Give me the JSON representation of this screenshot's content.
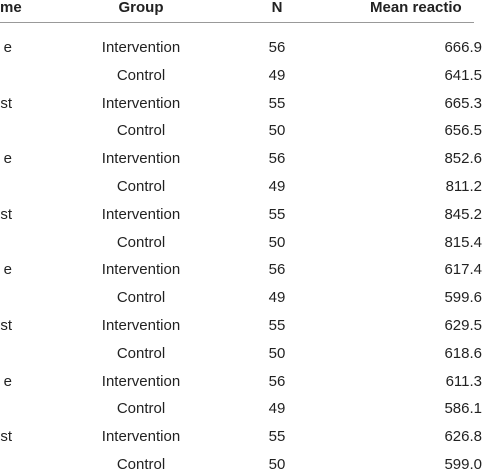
{
  "table": {
    "header": [
      "me",
      "Group",
      "N",
      "Mean reactio"
    ],
    "rows": [
      {
        "label": "e",
        "group": "Intervention",
        "n": "56",
        "mean": "666.9"
      },
      {
        "group": "Control",
        "n": "49",
        "mean": "641.5"
      },
      {
        "label": "st",
        "group": "Intervention",
        "n": "55",
        "mean": "665.3"
      },
      {
        "group": "Control",
        "n": "50",
        "mean": "656.5"
      },
      {
        "label": "e",
        "group": "Intervention",
        "n": "56",
        "mean": "852.6"
      },
      {
        "group": "Control",
        "n": "49",
        "mean": "811.2"
      },
      {
        "label": "st",
        "group": "Intervention",
        "n": "55",
        "mean": "845.2"
      },
      {
        "group": "Control",
        "n": "50",
        "mean": "815.4"
      },
      {
        "label": "e",
        "group": "Intervention",
        "n": "56",
        "mean": "617.4"
      },
      {
        "group": "Control",
        "n": "49",
        "mean": "599.6"
      },
      {
        "label": "st",
        "group": "Intervention",
        "n": "55",
        "mean": "629.5"
      },
      {
        "group": "Control",
        "n": "50",
        "mean": "618.6"
      },
      {
        "label": "e",
        "group": "Intervention",
        "n": "56",
        "mean": "611.3"
      },
      {
        "group": "Control",
        "n": "49",
        "mean": "586.1"
      },
      {
        "label": "st",
        "group": "Intervention",
        "n": "55",
        "mean": "626.8"
      },
      {
        "group": "Control",
        "n": "50",
        "mean": "599.0"
      }
    ]
  }
}
